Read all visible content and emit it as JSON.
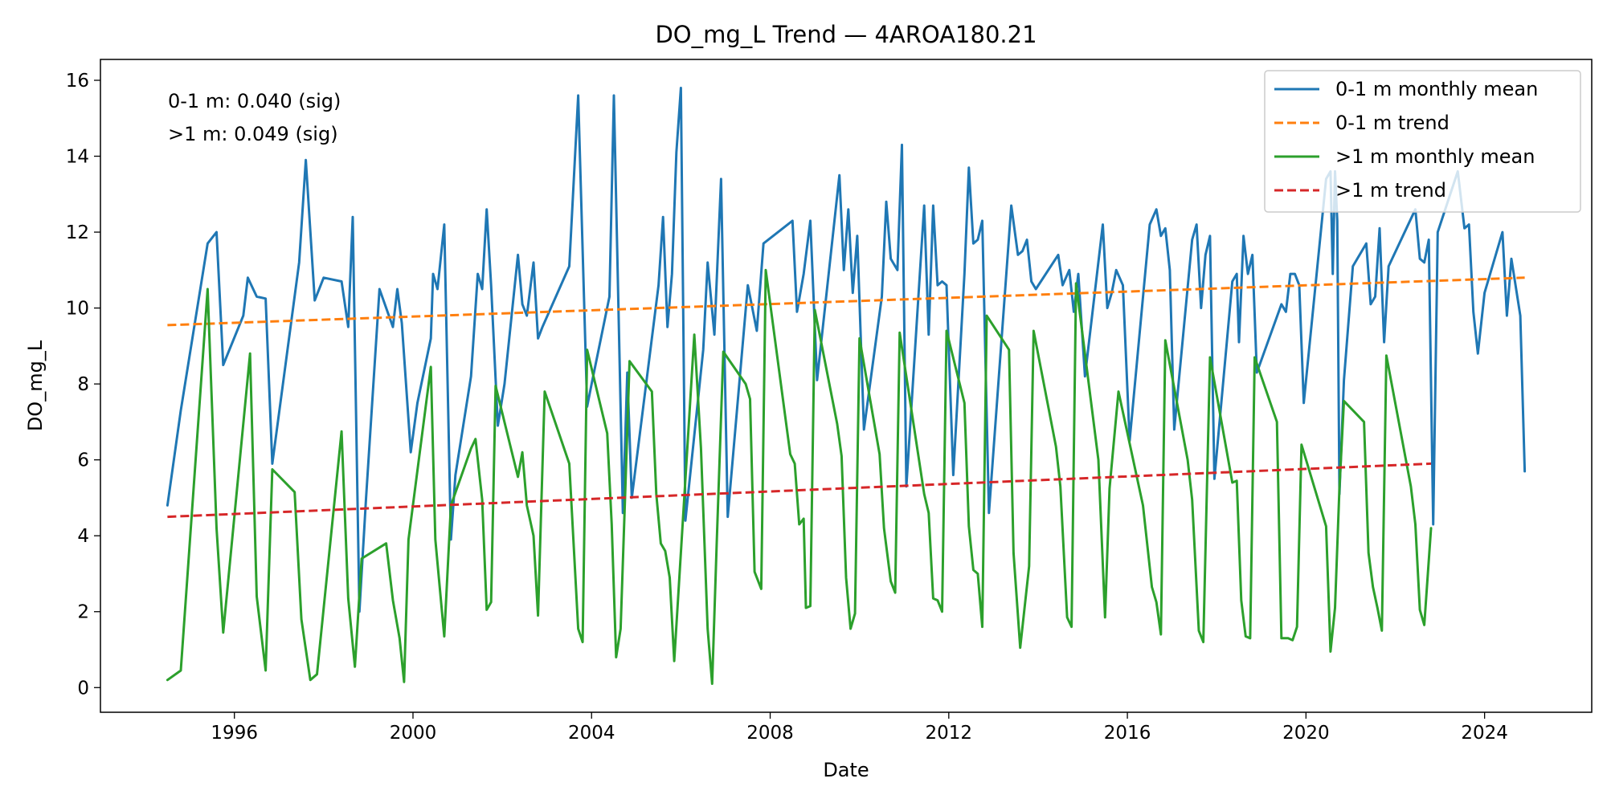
{
  "chart_data": {
    "type": "line",
    "title": "DO_mg_L Trend — 4AROA180.21",
    "xlabel": "Date",
    "ylabel": "DO_mg_L",
    "xlim": [
      1993.0,
      2026.4
    ],
    "ylim": [
      -0.65,
      16.55
    ],
    "x_ticks": [
      1996,
      2000,
      2004,
      2008,
      2012,
      2016,
      2020,
      2024
    ],
    "y_ticks": [
      0,
      2,
      4,
      6,
      8,
      10,
      12,
      14,
      16
    ],
    "grid": false,
    "legend_position": "top-right",
    "annotations": [
      "0-1 m: 0.040 (sig)",
      ">1 m: 0.049 (sig)"
    ],
    "series": [
      {
        "name": "0-1 m monthly mean",
        "color": "#1f77b4",
        "style": "solid",
        "x": [
          1994.5,
          1994.8,
          1995.4,
          1995.6,
          1995.75,
          1996.2,
          1996.3,
          1996.5,
          1996.7,
          1996.85,
          1997.45,
          1997.6,
          1997.8,
          1998.0,
          1998.4,
          1998.55,
          1998.65,
          1998.8,
          1998.95,
          1999.25,
          1999.55,
          1999.65,
          1999.75,
          1999.95,
          2000.1,
          2000.4,
          2000.45,
          2000.55,
          2000.7,
          2000.85,
          2000.95,
          2001.3,
          2001.45,
          2001.55,
          2001.65,
          2001.75,
          2001.9,
          2002.05,
          2002.35,
          2002.45,
          2002.55,
          2002.7,
          2002.8,
          2002.9,
          2003.5,
          2003.7,
          2003.9,
          2004.0,
          2004.4,
          2004.5,
          2004.7,
          2004.8,
          2004.9,
          2005.5,
          2005.6,
          2005.7,
          2005.8,
          2005.9,
          2006.0,
          2006.1,
          2006.5,
          2006.6,
          2006.75,
          2006.9,
          2007.05,
          2007.5,
          2007.7,
          2007.85,
          2008.5,
          2008.6,
          2008.75,
          2008.9,
          2009.05,
          2009.55,
          2009.65,
          2009.75,
          2009.85,
          2009.95,
          2010.1,
          2010.5,
          2010.6,
          2010.7,
          2010.85,
          2010.95,
          2011.05,
          2011.45,
          2011.55,
          2011.65,
          2011.75,
          2011.85,
          2011.95,
          2012.1,
          2012.35,
          2012.45,
          2012.55,
          2012.65,
          2012.75,
          2012.9,
          2013.4,
          2013.55,
          2013.65,
          2013.75,
          2013.85,
          2013.95,
          2014.45,
          2014.55,
          2014.7,
          2014.8,
          2014.9,
          2015.05,
          2015.45,
          2015.55,
          2015.65,
          2015.75,
          2015.9,
          2016.05,
          2016.5,
          2016.65,
          2016.75,
          2016.85,
          2016.95,
          2017.05,
          2017.45,
          2017.55,
          2017.65,
          2017.75,
          2017.85,
          2017.95,
          2018.35,
          2018.45,
          2018.5,
          2018.6,
          2018.7,
          2018.8,
          2018.9,
          2019.45,
          2019.55,
          2019.65,
          2019.75,
          2019.85,
          2019.95,
          2020.45,
          2020.55,
          2020.6,
          2020.65,
          2020.7,
          2020.75,
          2020.85,
          2021.05,
          2021.35,
          2021.45,
          2021.55,
          2021.65,
          2021.75,
          2021.85,
          2022.45,
          2022.55,
          2022.65,
          2022.75,
          2022.85,
          2022.95,
          2023.4,
          2023.55,
          2023.65,
          2023.75,
          2023.85,
          2024.0,
          2024.4,
          2024.5,
          2024.6,
          2024.8,
          2024.9
        ],
        "y": [
          4.8,
          7.3,
          11.7,
          12.0,
          8.5,
          9.8,
          10.8,
          10.3,
          10.25,
          5.9,
          11.2,
          13.9,
          10.2,
          10.8,
          10.7,
          9.5,
          12.4,
          2.0,
          5.0,
          10.5,
          9.5,
          10.5,
          9.6,
          6.2,
          7.5,
          9.2,
          10.9,
          10.5,
          12.2,
          3.9,
          5.6,
          8.2,
          10.9,
          10.5,
          12.6,
          10.6,
          6.9,
          8.0,
          11.4,
          10.1,
          9.8,
          11.2,
          9.2,
          9.5,
          11.1,
          15.6,
          7.4,
          8.0,
          10.3,
          15.6,
          4.6,
          8.3,
          5.0,
          10.6,
          12.4,
          9.5,
          10.9,
          14.1,
          15.8,
          4.4,
          8.9,
          11.2,
          9.3,
          13.4,
          4.5,
          10.6,
          9.4,
          11.7,
          12.3,
          9.9,
          10.9,
          12.3,
          8.1,
          13.5,
          11.0,
          12.6,
          10.4,
          11.9,
          6.8,
          10.3,
          12.8,
          11.3,
          11.0,
          14.3,
          5.3,
          12.7,
          9.3,
          12.7,
          10.6,
          10.7,
          10.6,
          5.6,
          10.9,
          13.7,
          11.7,
          11.8,
          12.3,
          4.6,
          12.7,
          11.4,
          11.5,
          11.8,
          10.7,
          10.5,
          11.4,
          10.6,
          11.0,
          9.9,
          10.9,
          8.2,
          12.2,
          10.0,
          10.4,
          11.0,
          10.6,
          6.5,
          12.2,
          12.6,
          11.9,
          12.1,
          11.0,
          6.8,
          11.8,
          12.2,
          10.0,
          11.4,
          11.9,
          5.5,
          10.7,
          10.9,
          9.1,
          11.9,
          10.9,
          11.4,
          8.3,
          10.1,
          9.9,
          10.9,
          10.9,
          10.6,
          7.5,
          13.4,
          13.6,
          10.9,
          13.6,
          12.3,
          5.1,
          8.1,
          11.1,
          11.7,
          10.1,
          10.3,
          12.1,
          9.1,
          11.1,
          12.6,
          11.3,
          11.2,
          11.8,
          4.3,
          12.0,
          13.6,
          12.1,
          12.2,
          9.9,
          8.8,
          10.4,
          12.0,
          9.8,
          11.3,
          9.8,
          5.7
        ]
      },
      {
        "name": "0-1 m trend",
        "color": "#ff7f0e",
        "style": "dashed",
        "x": [
          1994.5,
          2024.9
        ],
        "y": [
          9.55,
          10.8
        ]
      },
      {
        "name": ">1 m monthly mean",
        "color": "#2ca02c",
        "style": "solid",
        "x": [
          1994.5,
          1994.8,
          1995.4,
          1995.6,
          1995.75,
          1996.35,
          1996.5,
          1996.7,
          1996.85,
          1997.35,
          1997.5,
          1997.7,
          1997.85,
          1998.4,
          1998.55,
          1998.7,
          1998.85,
          1999.4,
          1999.55,
          1999.7,
          1999.8,
          1999.9,
          2000.4,
          2000.5,
          2000.7,
          2000.85,
          2001.3,
          2001.4,
          2001.55,
          2001.65,
          2001.75,
          2001.85,
          2002.35,
          2002.45,
          2002.55,
          2002.7,
          2002.8,
          2002.95,
          2003.5,
          2003.7,
          2003.8,
          2003.9,
          2004.35,
          2004.45,
          2004.55,
          2004.65,
          2004.75,
          2004.85,
          2005.35,
          2005.45,
          2005.55,
          2005.65,
          2005.75,
          2005.85,
          2006.3,
          2006.45,
          2006.6,
          2006.7,
          2006.8,
          2006.95,
          2007.45,
          2007.55,
          2007.65,
          2007.8,
          2007.9,
          2008.45,
          2008.55,
          2008.65,
          2008.75,
          2008.8,
          2008.9,
          2009.0,
          2009.5,
          2009.6,
          2009.7,
          2009.8,
          2009.9,
          2010.0,
          2010.45,
          2010.55,
          2010.7,
          2010.8,
          2010.9,
          2011.45,
          2011.55,
          2011.65,
          2011.75,
          2011.85,
          2011.95,
          2012.35,
          2012.45,
          2012.55,
          2012.65,
          2012.75,
          2012.85,
          2013.35,
          2013.45,
          2013.6,
          2013.8,
          2013.9,
          2014.4,
          2014.5,
          2014.65,
          2014.75,
          2014.85,
          2015.35,
          2015.5,
          2015.6,
          2015.8,
          2016.35,
          2016.55,
          2016.65,
          2016.75,
          2016.85,
          2017.35,
          2017.45,
          2017.6,
          2017.7,
          2017.85,
          2018.35,
          2018.45,
          2018.55,
          2018.65,
          2018.75,
          2018.85,
          2019.35,
          2019.45,
          2019.6,
          2019.7,
          2019.8,
          2019.9,
          2020.45,
          2020.55,
          2020.65,
          2020.75,
          2020.85,
          2021.3,
          2021.4,
          2021.5,
          2021.6,
          2021.7,
          2021.8,
          2022.35,
          2022.45,
          2022.55,
          2022.65,
          2022.8
        ],
        "y": [
          0.2,
          0.45,
          10.5,
          4.2,
          1.45,
          8.8,
          2.4,
          0.45,
          5.75,
          5.15,
          1.8,
          0.2,
          0.35,
          6.75,
          2.35,
          0.55,
          3.4,
          3.8,
          2.3,
          1.3,
          0.15,
          3.9,
          8.45,
          3.9,
          1.35,
          4.8,
          6.3,
          6.55,
          4.95,
          2.05,
          2.25,
          7.95,
          5.55,
          6.2,
          4.8,
          4.0,
          1.9,
          7.8,
          5.9,
          1.55,
          1.2,
          8.9,
          6.7,
          4.3,
          0.8,
          1.55,
          5.0,
          8.6,
          7.8,
          5.1,
          3.8,
          3.6,
          2.9,
          0.7,
          9.3,
          6.3,
          1.55,
          0.1,
          3.75,
          8.85,
          8.0,
          7.6,
          3.05,
          2.6,
          11.0,
          6.15,
          5.9,
          4.3,
          4.45,
          2.1,
          2.15,
          9.95,
          6.95,
          6.1,
          2.9,
          1.55,
          1.95,
          9.2,
          6.15,
          4.2,
          2.8,
          2.5,
          9.35,
          5.1,
          4.6,
          2.35,
          2.3,
          2.0,
          9.4,
          7.5,
          4.25,
          3.1,
          3.0,
          1.6,
          9.8,
          8.9,
          3.55,
          1.05,
          3.2,
          9.4,
          6.35,
          5.3,
          1.85,
          1.6,
          10.65,
          6.0,
          1.85,
          5.25,
          7.8,
          4.8,
          2.65,
          2.25,
          1.4,
          9.15,
          6.0,
          4.95,
          1.5,
          1.2,
          8.7,
          5.4,
          5.45,
          2.3,
          1.35,
          1.3,
          8.7,
          7.0,
          1.3,
          1.3,
          1.25,
          1.6,
          6.4,
          4.25,
          0.95,
          2.1,
          5.25,
          7.55,
          7.0,
          3.55,
          2.65,
          2.1,
          1.5,
          8.75,
          5.3,
          4.3,
          2.05,
          1.65,
          4.2
        ]
      },
      {
        "name": ">1 m trend",
        "color": "#d62728",
        "style": "dashed",
        "x": [
          1994.5,
          2022.8
        ],
        "y": [
          4.5,
          5.9
        ]
      }
    ]
  }
}
